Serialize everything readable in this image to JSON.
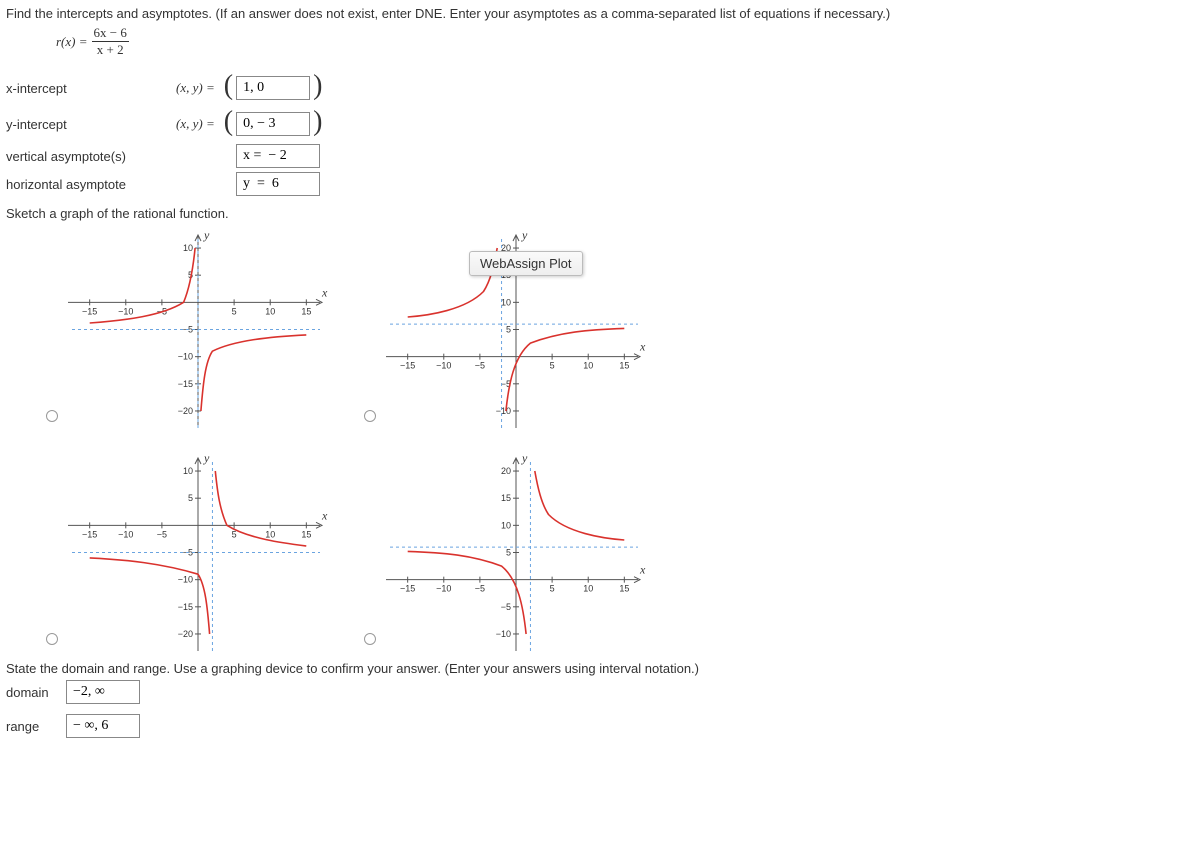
{
  "question": "Find the intercepts and asymptotes. (If an answer does not exist, enter DNE. Enter your asymptotes as a comma-separated list of equations if necessary.)",
  "formula": {
    "lhs": "r(x) =",
    "num": "6x − 6",
    "den": "x + 2"
  },
  "answers": {
    "x_intercept": {
      "label": "x-intercept",
      "prefix": "(x, y) =",
      "value": "1, 0"
    },
    "y_intercept": {
      "label": "y-intercept",
      "prefix": "(x, y) =",
      "value": "0, − 3"
    },
    "vertical": {
      "label": "vertical asymptote(s)",
      "value": "x =  − 2"
    },
    "horizontal": {
      "label": "horizontal asymptote",
      "value": "y  =  6"
    }
  },
  "sketch_prompt": "Sketch a graph of the rational function.",
  "tooltip": "WebAssign Plot",
  "graphs": {
    "axis_color": "#555555",
    "asym_color": "#6aa4e0",
    "curve_color": "#d9322d",
    "y_label": "y",
    "x_label": "x",
    "g1": {
      "y_ticks": [
        10,
        5,
        -5,
        -10,
        -15,
        -20
      ],
      "x_ticks": [
        -15,
        -10,
        -5,
        5,
        10,
        15
      ],
      "h_asym_y": -5,
      "v_asym_x": 0,
      "curves": [
        "M -15 -3.8 C -10 -3.3 -5 -2.5 -2 0 C -1.2 2.5 -0.7 6 -0.4 10",
        "M 0.4 -20 C 0.7 -15 1 -11 2 -9 C 5 -7 10 -6.3 15 -6"
      ]
    },
    "g2": {
      "y_ticks": [
        20,
        15,
        10,
        5,
        -5,
        -10
      ],
      "x_ticks": [
        -15,
        -10,
        -5,
        5,
        10,
        15
      ],
      "h_asym_y": 6,
      "v_asym_x": -2,
      "curves": [
        "M -15 7.3 C -12 7.6 -7 8.6 -4.5 12 C -3.5 14 -3 17 -2.6 20",
        "M -1.4 -10 C -1 -5 -0.3 0 2 2.5 C 6 4.5 10 5 15 5.2"
      ]
    },
    "g3": {
      "y_ticks": [
        10,
        5,
        -5,
        -10,
        -15,
        -20
      ],
      "x_ticks": [
        -15,
        -10,
        -5,
        5,
        10,
        15
      ],
      "h_asym_y": -5,
      "v_asym_x": 2,
      "curves": [
        "M -15 -6 C -10 -6.3 -5 -7 0 -9 C 1 -11 1.3 -15 1.6 -20",
        "M 2.4 10 C 2.7 6 3 3 4 0 C 7 -2.5 12 -3.3 15 -3.8"
      ]
    },
    "g4": {
      "y_ticks": [
        20,
        15,
        10,
        5,
        -5,
        -10
      ],
      "x_ticks": [
        -15,
        -10,
        -5,
        5,
        10,
        15
      ],
      "h_asym_y": 6,
      "v_asym_x": 2,
      "curves": [
        "M -15 5.2 C -10 5 -6 4.5 -2 2.5 C 0.3 0 1 -5 1.4 -10",
        "M 2.6 20 C 3 17 3.5 14 4.5 12 C 7 8.6 12 7.6 15 7.3"
      ]
    }
  },
  "bottom_prompt": "State the domain and range. Use a graphing device to confirm your answer. (Enter your answers using interval notation.)",
  "domain": {
    "label": "domain",
    "value": "−2, ∞"
  },
  "range": {
    "label": "range",
    "value": "− ∞, 6"
  }
}
